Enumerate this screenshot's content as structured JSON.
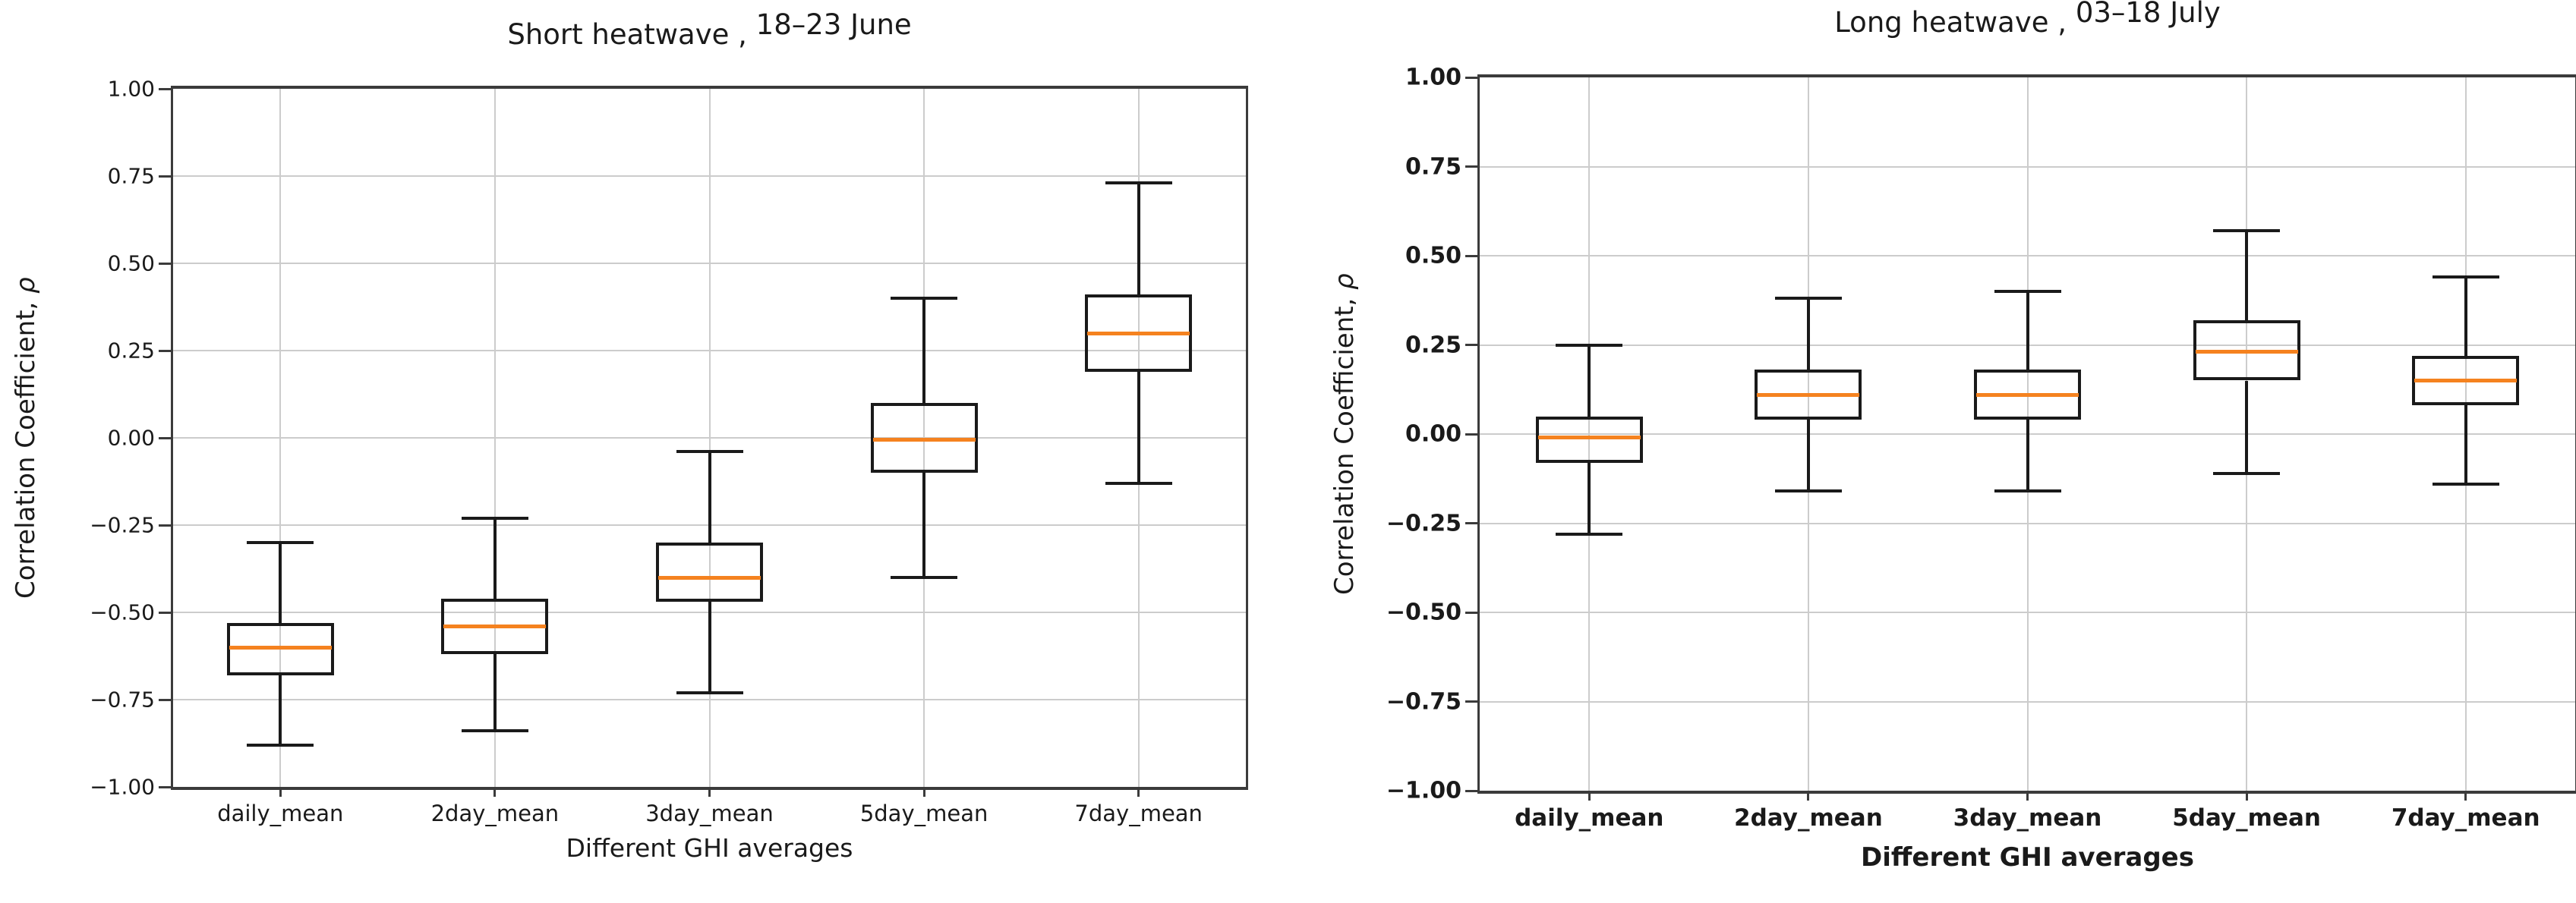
{
  "page": {
    "background_color": "#ffffff",
    "figure_type": "two side-by-side box plots"
  },
  "chart_data": [
    {
      "type": "boxplot",
      "title": "Short heatwave , 18–23 June",
      "title_parts": {
        "main": "Short heatwave",
        "comma": " , ",
        "date": "18–23 June"
      },
      "xlabel": "Different GHI averages",
      "ylabel": "Correlation Coefficient, ρ",
      "ylabel_parts": {
        "text": "Correlation Coefficient, ",
        "symbol": "ρ"
      },
      "categories": [
        "daily_mean",
        "2day_mean",
        "3day_mean",
        "5day_mean",
        "7day_mean"
      ],
      "ylim": [
        -1.0,
        1.0
      ],
      "ytick_step": 0.25,
      "yticklabels": [
        "1.00",
        "0.75",
        "0.50",
        "0.25",
        "0.00",
        "−0.25",
        "−0.50",
        "−0.75",
        "−1.00"
      ],
      "grid": true,
      "legend": "none",
      "median_color": "#f5821f",
      "box_line_color": "#1a1a1a",
      "grid_color": "#cccccc",
      "boxes": [
        {
          "category": "daily_mean",
          "whisker_low": -0.88,
          "q1": -0.68,
          "median": -0.6,
          "q3": -0.53,
          "whisker_high": -0.3
        },
        {
          "category": "2day_mean",
          "whisker_low": -0.84,
          "q1": -0.62,
          "median": -0.54,
          "q3": -0.46,
          "whisker_high": -0.23
        },
        {
          "category": "3day_mean",
          "whisker_low": -0.73,
          "q1": -0.47,
          "median": -0.4,
          "q3": -0.3,
          "whisker_high": -0.04
        },
        {
          "category": "5day_mean",
          "whisker_low": -0.4,
          "q1": -0.1,
          "median": -0.005,
          "q3": 0.1,
          "whisker_high": 0.4
        },
        {
          "category": "7day_mean",
          "whisker_low": -0.13,
          "q1": 0.19,
          "median": 0.3,
          "q3": 0.41,
          "whisker_high": 0.73
        }
      ]
    },
    {
      "type": "boxplot",
      "title": "Long heatwave , 03–18 July",
      "title_parts": {
        "main": "Long heatwave",
        "comma": " , ",
        "date": "03–18 July"
      },
      "xlabel": "Different GHI averages",
      "ylabel": "Correlation Coefficient, ρ",
      "ylabel_parts": {
        "text": "Correlation Coefficient, ",
        "symbol": "ρ"
      },
      "categories": [
        "daily_mean",
        "2day_mean",
        "3day_mean",
        "5day_mean",
        "7day_mean"
      ],
      "ylim": [
        -1.0,
        1.0
      ],
      "ytick_step": 0.25,
      "yticklabels": [
        "1.00",
        "0.75",
        "0.50",
        "0.25",
        "0.00",
        "−0.25",
        "−0.50",
        "−0.75",
        "−1.00"
      ],
      "grid": true,
      "legend": "none",
      "median_color": "#f5821f",
      "box_line_color": "#1a1a1a",
      "grid_color": "#cccccc",
      "boxes": [
        {
          "category": "daily_mean",
          "whisker_low": -0.28,
          "q1": -0.08,
          "median": -0.01,
          "q3": 0.05,
          "whisker_high": 0.25
        },
        {
          "category": "2day_mean",
          "whisker_low": -0.16,
          "q1": 0.04,
          "median": 0.11,
          "q3": 0.18,
          "whisker_high": 0.38
        },
        {
          "category": "3day_mean",
          "whisker_low": -0.16,
          "q1": 0.04,
          "median": 0.11,
          "q3": 0.18,
          "whisker_high": 0.4
        },
        {
          "category": "5day_mean",
          "whisker_low": -0.11,
          "q1": 0.15,
          "median": 0.23,
          "q3": 0.32,
          "whisker_high": 0.57
        },
        {
          "category": "7day_mean",
          "whisker_low": -0.14,
          "q1": 0.08,
          "median": 0.15,
          "q3": 0.22,
          "whisker_high": 0.44
        }
      ]
    }
  ]
}
